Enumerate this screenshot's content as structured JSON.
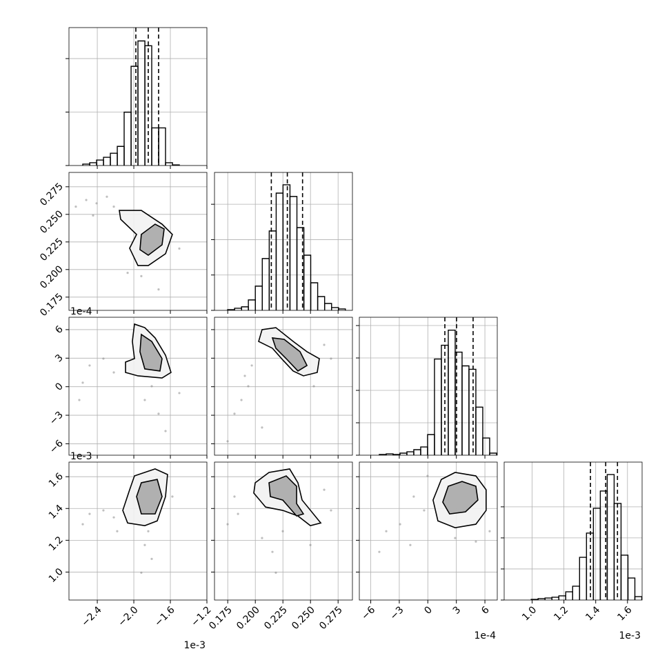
{
  "chart_data": {
    "type": "corner",
    "color": "#000000",
    "point_color": "#808080",
    "grid": true,
    "params": [
      {
        "offset": "1e-3",
        "lim": [
          -2.71,
          -1.2
        ],
        "ticks": [
          {
            "value": -2.4,
            "label": "−2.4"
          },
          {
            "value": -2.0,
            "label": "−2.0"
          },
          {
            "value": -1.6,
            "label": "−1.6"
          },
          {
            "value": -1.2,
            "label": "−1.2"
          }
        ],
        "quantiles": [
          -1.978,
          -1.842,
          -1.729
        ],
        "bins": [
          -2.559,
          -2.483,
          -2.408,
          -2.332,
          -2.257,
          -2.181,
          -2.106,
          -2.03,
          -1.955,
          -1.879,
          -1.804,
          -1.728,
          -1.653,
          -1.577,
          -1.502
        ],
        "counts": [
          13,
          26,
          51,
          77,
          115,
          179,
          499,
          928,
          1165,
          1120,
          352,
          352,
          26,
          6
        ],
        "hist_ylim": [
          0,
          1290
        ],
        "hist_yticks": [
          0,
          500,
          1000
        ]
      },
      {
        "lim": [
          0.163,
          0.288
        ],
        "ticks": [
          0.175,
          {
            "value": 0.2,
            "label": "0.200"
          },
          0.225,
          {
            "value": 0.25,
            "label": "0.250"
          },
          0.275
        ],
        "quantiles": [
          0.2145,
          0.229,
          0.2428
        ],
        "bins": [
          0.1749,
          0.1812,
          0.1875,
          0.1937,
          0.2,
          0.2063,
          0.2126,
          0.2189,
          0.2251,
          0.2314,
          0.2377,
          0.244,
          0.2502,
          0.2565,
          0.2628,
          0.2691,
          0.2754,
          0.2816
        ],
        "counts": [
          4,
          12,
          20,
          59,
          137,
          293,
          449,
          663,
          710,
          644,
          468,
          312,
          156,
          78,
          39,
          16,
          8
        ],
        "hist_ylim": [
          0,
          780
        ],
        "hist_yticks": [
          0,
          200,
          400,
          600
        ]
      },
      {
        "offset": "1e-4",
        "lim": [
          -7.2,
          7.3
        ],
        "ticks": [
          {
            "value": -6,
            "label": "−6"
          },
          {
            "value": -3,
            "label": "−3"
          },
          0,
          3,
          6
        ],
        "quantiles": [
          1.79,
          3.02,
          4.76
        ],
        "bins": [
          -5.1,
          -4.375,
          -3.65,
          -2.925,
          -2.2,
          -1.475,
          -0.75,
          -0.025,
          0.7,
          1.425,
          2.15,
          2.875,
          3.6,
          4.325,
          5.05,
          5.775,
          6.5,
          7.225
        ],
        "counts": [
          11,
          21,
          11,
          32,
          53,
          85,
          127,
          318,
          1484,
          1696,
          1929,
          1590,
          1378,
          1325,
          742,
          265,
          32
        ],
        "hist_ylim": [
          0,
          2128
        ],
        "hist_yticks": [
          0,
          500,
          1000,
          1500,
          2000
        ]
      },
      {
        "offset": "1e-3",
        "lim": [
          0.824,
          1.692
        ],
        "ticks": [
          {
            "value": 1.0,
            "label": "1.0"
          },
          1.2,
          1.4,
          1.6
        ],
        "quantiles": [
          1.367,
          1.463,
          1.537
        ],
        "bins": [
          0.994,
          1.0375,
          1.081,
          1.1245,
          1.168,
          1.2115,
          1.255,
          1.2985,
          1.342,
          1.3855,
          1.429,
          1.4725,
          1.516,
          1.5595,
          1.603,
          1.6465,
          1.69
        ],
        "counts": [
          4,
          9,
          13,
          18,
          27,
          53,
          89,
          275,
          431,
          591,
          702,
          808,
          622,
          289,
          142,
          22
        ],
        "hist_ylim": [
          0,
          888
        ],
        "hist_yticks": [
          0,
          200,
          400,
          600
        ]
      }
    ],
    "panels": [
      {
        "x_param": 0,
        "y_param": 1,
        "points": {
          "x": [
            -2.635,
            -2.521,
            -2.408,
            -2.295,
            -2.219,
            -2.446,
            -2.068,
            -1.918,
            -1.502,
            -1.729
          ],
          "y": [
            0.257,
            0.263,
            0.26,
            0.266,
            0.257,
            0.249,
            0.197,
            0.194,
            0.219,
            0.182
          ]
        },
        "contours": [
          {
            "x": [
              -2.159,
              -1.918,
              -1.691,
              -1.578,
              -1.653,
              -1.842,
              -1.955,
              -2.046,
              -1.97,
              -2.144
            ],
            "y": [
              0.2536,
              0.2536,
              0.2411,
              0.2318,
              0.2143,
              0.2036,
              0.2036,
              0.2193,
              0.2318,
              0.2455
            ]
          },
          {
            "x": [
              -1.918,
              -1.767,
              -1.668,
              -1.691,
              -1.842,
              -1.933
            ],
            "y": [
              0.2318,
              0.2411,
              0.2368,
              0.2224,
              0.213,
              0.218
            ]
          }
        ]
      },
      {
        "x_param": 0,
        "y_param": 2,
        "points": {
          "x": [
            -2.484,
            -2.333,
            -2.219,
            -2.559,
            -1.88,
            -1.729,
            -1.653,
            -1.804,
            -1.502,
            -2.597
          ],
          "y": [
            2.23,
            2.95,
            1.5,
            0.42,
            -1.4,
            -2.84,
            -4.66,
            0.05,
            -0.67,
            -1.4
          ]
        },
        "contours": [
          {
            "x": [
              -1.993,
              -1.88,
              -1.767,
              -1.653,
              -1.593,
              -1.691,
              -1.955,
              -2.091,
              -2.091,
              -1.993,
              -2.016
            ],
            "y": [
              6.58,
              6.21,
              5.13,
              3.31,
              1.5,
              0.92,
              1.14,
              1.5,
              2.59,
              2.95,
              4.76
            ]
          },
          {
            "x": [
              -1.918,
              -1.804,
              -1.691,
              -1.714,
              -1.88,
              -1.933
            ],
            "y": [
              5.49,
              4.76,
              2.95,
              1.65,
              1.87,
              3.68
            ]
          }
        ]
      },
      {
        "x_param": 1,
        "y_param": 2,
        "points": {
          "x": [
            0.1811,
            0.1874,
            0.1936,
            0.1749,
            0.2624,
            0.2686,
            0.1968,
            0.1905,
            0.253,
            0.2061
          ],
          "y": [
            -2.84,
            -1.4,
            0.05,
            -5.74,
            4.4,
            2.95,
            2.23,
            1.14,
            0.05,
            -4.29
          ]
        },
        "contours": [
          {
            "x": [
              0.2061,
              0.2186,
              0.2343,
              0.2468,
              0.258,
              0.2561,
              0.2436,
              0.2343,
              0.2249,
              0.2155,
              0.203
            ],
            "y": [
              6.0,
              6.21,
              4.76,
              3.68,
              2.95,
              1.5,
              1.14,
              1.65,
              2.81,
              4.04,
              4.76
            ]
          },
          {
            "x": [
              0.2155,
              0.2261,
              0.2405,
              0.2468,
              0.2386,
              0.228,
              0.2186
            ],
            "y": [
              5.13,
              4.98,
              3.68,
              2.23,
              1.65,
              2.95,
              4.04
            ]
          }
        ]
      },
      {
        "x_param": 0,
        "y_param": 3,
        "points": {
          "x": [
            -2.484,
            -2.333,
            -2.559,
            -2.219,
            -1.88,
            -1.804,
            -1.918,
            -1.578,
            -2.182,
            -1.842
          ],
          "y": [
            1.366,
            1.388,
            1.301,
            1.344,
            1.17,
            1.083,
            0.996,
            1.475,
            1.257,
            1.257
          ]
        },
        "contours": [
          {
            "x": [
              -1.993,
              -1.767,
              -1.631,
              -1.653,
              -1.744,
              -1.88,
              -2.068,
              -2.121,
              -2.046
            ],
            "y": [
              1.605,
              1.649,
              1.614,
              1.475,
              1.322,
              1.292,
              1.309,
              1.388,
              1.518
            ]
          },
          {
            "x": [
              -1.918,
              -1.744,
              -1.691,
              -1.767,
              -1.918,
              -1.97
            ],
            "y": [
              1.562,
              1.583,
              1.475,
              1.366,
              1.366,
              1.475
            ]
          }
        ]
      },
      {
        "x_param": 1,
        "y_param": 3,
        "points": {
          "x": [
            0.1749,
            0.1843,
            0.2061,
            0.2155,
            0.2186,
            0.2686,
            0.2624,
            0.2249,
            0.1811,
            0.2499
          ],
          "y": [
            1.301,
            1.366,
            1.214,
            1.127,
            0.996,
            1.388,
            1.518,
            1.257,
            1.475,
            1.17
          ]
        },
        "contours": [
          {
            "x": [
              0.1999,
              0.2124,
              0.2311,
              0.2386,
              0.2424,
              0.2593,
              0.2499,
              0.2386,
              0.2249,
              0.2093,
              0.1986
            ],
            "y": [
              1.562,
              1.627,
              1.649,
              1.562,
              1.453,
              1.309,
              1.292,
              1.353,
              1.388,
              1.409,
              1.497
            ]
          },
          {
            "x": [
              0.2124,
              0.228,
              0.2374,
              0.2374,
              0.2436,
              0.2374,
              0.2249,
              0.2136
            ],
            "y": [
              1.562,
              1.605,
              1.54,
              1.431,
              1.366,
              1.353,
              1.453,
              1.475
            ]
          }
        ]
      },
      {
        "x_param": 2,
        "y_param": 3,
        "points": {
          "x": [
            -4.37,
            -2.92,
            -1.48,
            -0.39,
            6.5,
            2.87,
            -5.1,
            5.05,
            -0.03,
            -1.84
          ],
          "y": [
            1.257,
            1.301,
            1.475,
            1.388,
            1.257,
            1.214,
            1.127,
            1.192,
            1.605,
            1.17
          ]
        },
        "contours": [
          {
            "x": [
              1.42,
              2.87,
              5.05,
              6.13,
              6.13,
              5.05,
              2.87,
              1.06,
              0.55
            ],
            "y": [
              1.583,
              1.627,
              1.605,
              1.518,
              1.388,
              1.301,
              1.279,
              1.322,
              1.453
            ]
          },
          {
            "x": [
              2.15,
              3.6,
              5.05,
              5.26,
              3.96,
              2.29,
              1.57
            ],
            "y": [
              1.54,
              1.57,
              1.54,
              1.453,
              1.379,
              1.366,
              1.44
            ]
          }
        ]
      }
    ]
  }
}
